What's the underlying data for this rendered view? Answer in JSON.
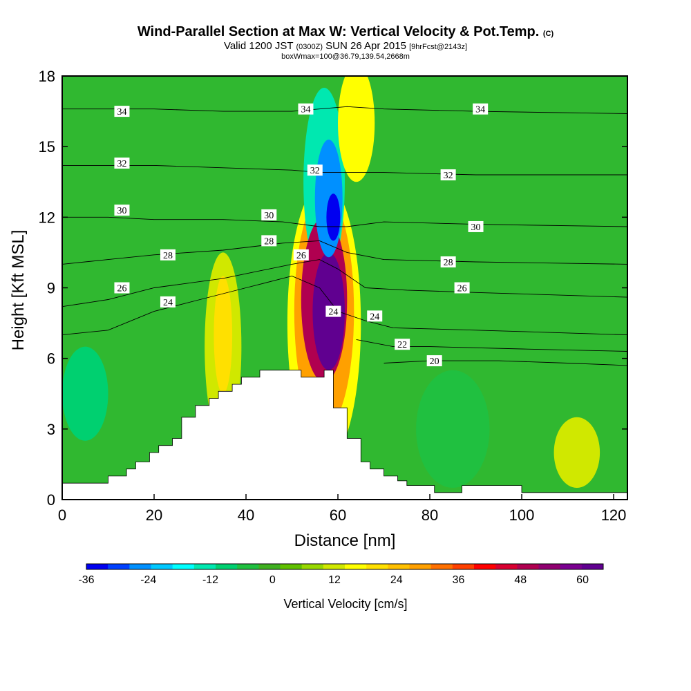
{
  "title": {
    "main": "Wind-Parallel Section at Max W: Vertical Velocity & Pot.Temp.",
    "main_suffix": "(C)",
    "valid_prefix": "Valid 1200 JST",
    "valid_utc": "(0300Z)",
    "valid_date": "SUN 26 Apr 2015",
    "forecast": "[9hrFcst@2143z]",
    "box": "boxWmax=100@36.79,139.54,2668m"
  },
  "chart_data": {
    "type": "heatmap",
    "xlabel": "Distance [nm]",
    "ylabel": "Height [Kft MSL]",
    "xlim": [
      0,
      123
    ],
    "ylim": [
      0,
      18
    ],
    "x_ticks": [
      "0",
      "20",
      "40",
      "60",
      "80",
      "100",
      "120"
    ],
    "y_ticks": [
      "0",
      "3",
      "6",
      "9",
      "12",
      "15",
      "18"
    ],
    "colorbar": {
      "title": "Vertical Velocity [cm/s]",
      "range": [
        -36,
        64
      ],
      "ticks": [
        "-36",
        "-24",
        "-12",
        "0",
        "12",
        "24",
        "36",
        "48",
        "60"
      ],
      "colors": [
        "#0000f0",
        "#0040ff",
        "#0090ff",
        "#00c8ff",
        "#00ffff",
        "#00e8b0",
        "#00d070",
        "#20c040",
        "#40b020",
        "#60c000",
        "#98d800",
        "#d0e800",
        "#ffff00",
        "#ffe000",
        "#ffc000",
        "#ffa000",
        "#ff7000",
        "#ff4000",
        "#ff0000",
        "#d80030",
        "#b00050",
        "#900070",
        "#7a0090",
        "#600090"
      ]
    },
    "terrain": [
      [
        0,
        0.7
      ],
      [
        10,
        0.7
      ],
      [
        10,
        1.0
      ],
      [
        14,
        1.0
      ],
      [
        14,
        1.3
      ],
      [
        16,
        1.3
      ],
      [
        16,
        1.6
      ],
      [
        19,
        1.6
      ],
      [
        19,
        2.0
      ],
      [
        21,
        2.0
      ],
      [
        21,
        2.3
      ],
      [
        24,
        2.3
      ],
      [
        24,
        2.6
      ],
      [
        26,
        2.6
      ],
      [
        26,
        3.5
      ],
      [
        29,
        3.5
      ],
      [
        29,
        4.0
      ],
      [
        32,
        4.0
      ],
      [
        32,
        4.3
      ],
      [
        34,
        4.3
      ],
      [
        34,
        4.6
      ],
      [
        37,
        4.6
      ],
      [
        37,
        4.9
      ],
      [
        39,
        4.9
      ],
      [
        39,
        5.2
      ],
      [
        43,
        5.2
      ],
      [
        43,
        5.5
      ],
      [
        52,
        5.5
      ],
      [
        52,
        5.2
      ],
      [
        57,
        5.2
      ],
      [
        57,
        5.5
      ],
      [
        59,
        5.5
      ],
      [
        59,
        3.9
      ],
      [
        62,
        3.9
      ],
      [
        62,
        2.6
      ],
      [
        65,
        2.6
      ],
      [
        65,
        1.6
      ],
      [
        67,
        1.6
      ],
      [
        67,
        1.3
      ],
      [
        70,
        1.3
      ],
      [
        70,
        1.0
      ],
      [
        73,
        1.0
      ],
      [
        73,
        0.8
      ],
      [
        75,
        0.8
      ],
      [
        75,
        0.6
      ],
      [
        81,
        0.6
      ],
      [
        81,
        0.3
      ],
      [
        87,
        0.3
      ],
      [
        87,
        0.6
      ],
      [
        100,
        0.6
      ],
      [
        100,
        0.3
      ],
      [
        123,
        0.3
      ]
    ],
    "wv_regions": [
      {
        "name": "updraft-core",
        "value": 64,
        "cx": 58,
        "cy": 8.0,
        "rx": 3.5,
        "ry": 2.5
      },
      {
        "name": "updraft-strong",
        "value": 48,
        "cx": 57,
        "cy": 8.5,
        "rx": 5,
        "ry": 3.5
      },
      {
        "name": "updraft-moderate",
        "value": 30,
        "cx": 57,
        "cy": 8.0,
        "rx": 6.5,
        "ry": 5
      },
      {
        "name": "updraft-weak",
        "value": 16,
        "cx": 57,
        "cy": 7.5,
        "rx": 8,
        "ry": 6
      },
      {
        "name": "updraft-west",
        "value": 20,
        "cx": 35,
        "cy": 7.0,
        "rx": 2,
        "ry": 2.5
      },
      {
        "name": "updraft-west-weak",
        "value": 10,
        "cx": 35,
        "cy": 6.5,
        "rx": 4,
        "ry": 4
      },
      {
        "name": "updraft-upper",
        "value": 14,
        "cx": 64,
        "cy": 16,
        "rx": 4,
        "ry": 2.5
      },
      {
        "name": "updraft-east",
        "value": 12,
        "cx": 112,
        "cy": 2.0,
        "rx": 5,
        "ry": 1.5
      },
      {
        "name": "downdraft-core",
        "value": -36,
        "cx": 59,
        "cy": 12.0,
        "rx": 1.5,
        "ry": 1.0
      },
      {
        "name": "downdraft-strong",
        "value": -24,
        "cx": 58,
        "cy": 12.8,
        "rx": 3,
        "ry": 2.5
      },
      {
        "name": "downdraft-moderate",
        "value": -12,
        "cx": 57,
        "cy": 13.5,
        "rx": 4.5,
        "ry": 4
      },
      {
        "name": "downdraft-west",
        "value": -8,
        "cx": 5,
        "cy": 4.5,
        "rx": 5,
        "ry": 2
      },
      {
        "name": "downdraft-east",
        "value": -6,
        "cx": 85,
        "cy": 3.0,
        "rx": 8,
        "ry": 2.5
      }
    ],
    "theta_contours": [
      {
        "value": 20,
        "points": [
          [
            70,
            5.8
          ],
          [
            80,
            5.9
          ],
          [
            95,
            5.9
          ],
          [
            110,
            5.8
          ],
          [
            123,
            5.7
          ]
        ]
      },
      {
        "value": 22,
        "points": [
          [
            64,
            6.8
          ],
          [
            72,
            6.5
          ],
          [
            80,
            6.5
          ],
          [
            100,
            6.4
          ],
          [
            123,
            6.3
          ]
        ]
      },
      {
        "value": 24,
        "points": [
          [
            0,
            7.0
          ],
          [
            10,
            7.2
          ],
          [
            20,
            8.0
          ],
          [
            30,
            8.5
          ],
          [
            40,
            9.0
          ],
          [
            50,
            9.5
          ],
          [
            56,
            9.0
          ],
          [
            60,
            8.0
          ],
          [
            66,
            7.6
          ],
          [
            72,
            7.3
          ],
          [
            90,
            7.2
          ],
          [
            123,
            7.0
          ]
        ]
      },
      {
        "value": 26,
        "points": [
          [
            0,
            8.2
          ],
          [
            10,
            8.5
          ],
          [
            20,
            9.0
          ],
          [
            35,
            9.4
          ],
          [
            50,
            10.0
          ],
          [
            56,
            10.2
          ],
          [
            60,
            9.8
          ],
          [
            66,
            9.0
          ],
          [
            75,
            8.9
          ],
          [
            90,
            8.8
          ],
          [
            123,
            8.6
          ]
        ]
      },
      {
        "value": 28,
        "points": [
          [
            0,
            10.0
          ],
          [
            10,
            10.2
          ],
          [
            20,
            10.4
          ],
          [
            35,
            10.6
          ],
          [
            48,
            10.9
          ],
          [
            56,
            11.0
          ],
          [
            62,
            10.5
          ],
          [
            70,
            10.2
          ],
          [
            90,
            10.1
          ],
          [
            123,
            10.0
          ]
        ]
      },
      {
        "value": 30,
        "points": [
          [
            0,
            12.0
          ],
          [
            10,
            12.0
          ],
          [
            20,
            11.9
          ],
          [
            35,
            11.9
          ],
          [
            48,
            11.8
          ],
          [
            56,
            11.6
          ],
          [
            62,
            11.6
          ],
          [
            70,
            11.8
          ],
          [
            90,
            11.7
          ],
          [
            123,
            11.6
          ]
        ]
      },
      {
        "value": 32,
        "points": [
          [
            0,
            14.2
          ],
          [
            10,
            14.2
          ],
          [
            20,
            14.2
          ],
          [
            35,
            14.1
          ],
          [
            50,
            14.0
          ],
          [
            56,
            13.9
          ],
          [
            62,
            13.9
          ],
          [
            70,
            13.9
          ],
          [
            90,
            13.8
          ],
          [
            123,
            13.8
          ]
        ]
      },
      {
        "value": 34,
        "points": [
          [
            0,
            16.6
          ],
          [
            10,
            16.6
          ],
          [
            20,
            16.6
          ],
          [
            35,
            16.5
          ],
          [
            50,
            16.5
          ],
          [
            56,
            16.6
          ],
          [
            62,
            16.7
          ],
          [
            70,
            16.6
          ],
          [
            90,
            16.5
          ],
          [
            123,
            16.4
          ]
        ]
      }
    ],
    "contour_labels": [
      {
        "text": "34",
        "x": 13,
        "y": 16.5
      },
      {
        "text": "34",
        "x": 53,
        "y": 16.6
      },
      {
        "text": "34",
        "x": 91,
        "y": 16.6
      },
      {
        "text": "32",
        "x": 13,
        "y": 14.3
      },
      {
        "text": "32",
        "x": 55,
        "y": 14.0
      },
      {
        "text": "32",
        "x": 84,
        "y": 13.8
      },
      {
        "text": "30",
        "x": 13,
        "y": 12.3
      },
      {
        "text": "30",
        "x": 45,
        "y": 12.1
      },
      {
        "text": "30",
        "x": 90,
        "y": 11.6
      },
      {
        "text": "28",
        "x": 23,
        "y": 10.4
      },
      {
        "text": "28",
        "x": 45,
        "y": 11.0
      },
      {
        "text": "28",
        "x": 84,
        "y": 10.1
      },
      {
        "text": "26",
        "x": 13,
        "y": 9.0
      },
      {
        "text": "26",
        "x": 52,
        "y": 10.4
      },
      {
        "text": "26",
        "x": 87,
        "y": 9.0
      },
      {
        "text": "24",
        "x": 23,
        "y": 8.4
      },
      {
        "text": "24",
        "x": 59,
        "y": 8.0
      },
      {
        "text": "24",
        "x": 68,
        "y": 7.8
      },
      {
        "text": "22",
        "x": 74,
        "y": 6.6
      },
      {
        "text": "20",
        "x": 81,
        "y": 5.9
      }
    ]
  }
}
